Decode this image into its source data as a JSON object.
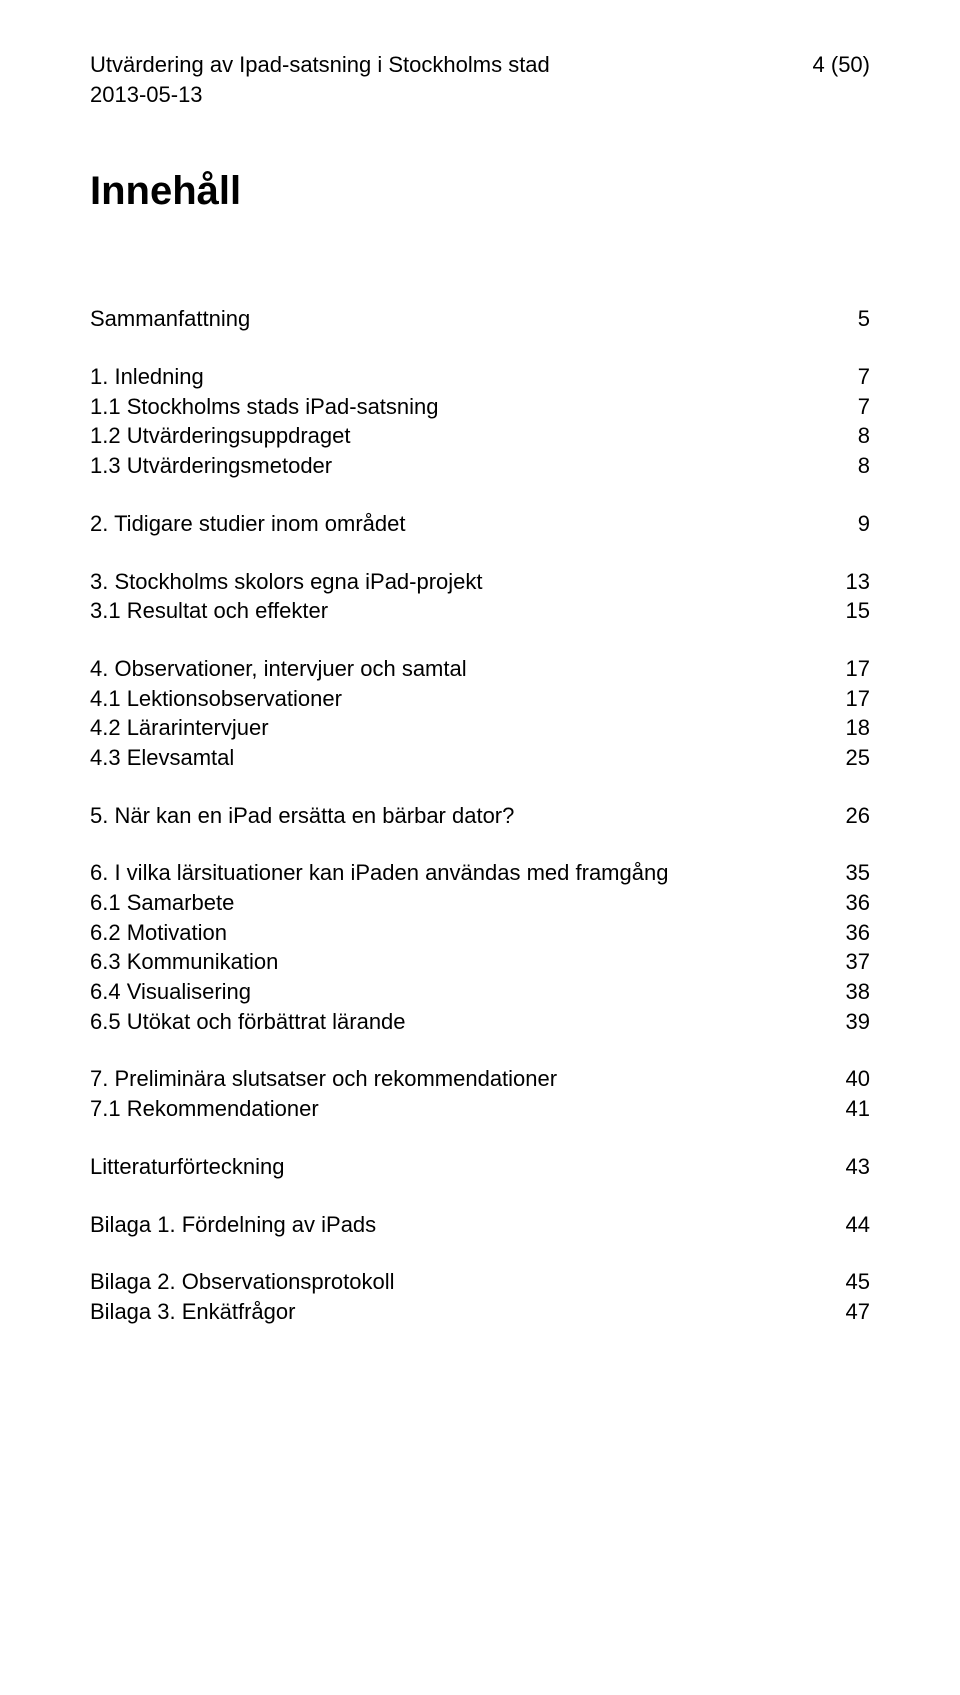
{
  "header": {
    "line1_left": "Utvärdering av Ipad-satsning i Stockholms stad",
    "line1_right": "4 (50)",
    "line2_left": "2013-05-13"
  },
  "title": "Innehåll",
  "toc": {
    "groups": [
      [
        {
          "label": "Sammanfattning",
          "page": "5"
        }
      ],
      [
        {
          "label": "1. Inledning",
          "page": "7"
        },
        {
          "label": "1.1 Stockholms stads iPad-satsning",
          "page": "7"
        },
        {
          "label": "1.2 Utvärderingsuppdraget",
          "page": "8"
        },
        {
          "label": "1.3 Utvärderingsmetoder",
          "page": "8"
        }
      ],
      [
        {
          "label": "2. Tidigare studier inom området",
          "page": "9"
        }
      ],
      [
        {
          "label": "3. Stockholms skolors egna iPad-projekt",
          "page": "13"
        },
        {
          "label": "3.1 Resultat och effekter",
          "page": "15"
        }
      ],
      [
        {
          "label": "4. Observationer, intervjuer och samtal",
          "page": "17"
        },
        {
          "label": "4.1 Lektionsobservationer",
          "page": "17"
        },
        {
          "label": "4.2 Lärarintervjuer",
          "page": "18"
        },
        {
          "label": "4.3 Elevsamtal",
          "page": "25"
        }
      ],
      [
        {
          "label": "5. När kan en iPad ersätta en bärbar dator?",
          "page": "26"
        }
      ],
      [
        {
          "label": "6. I vilka lärsituationer kan iPaden användas med framgång",
          "page": "35"
        },
        {
          "label": "6.1 Samarbete",
          "page": "36"
        },
        {
          "label": "6.2 Motivation",
          "page": "36"
        },
        {
          "label": "6.3 Kommunikation",
          "page": "37"
        },
        {
          "label": "6.4 Visualisering",
          "page": "38"
        },
        {
          "label": "6.5 Utökat och förbättrat lärande",
          "page": "39"
        }
      ],
      [
        {
          "label": "7. Preliminära slutsatser och rekommendationer",
          "page": "40"
        },
        {
          "label": "7.1 Rekommendationer",
          "page": "41"
        }
      ],
      [
        {
          "label": "Litteraturförteckning",
          "page": "43"
        }
      ],
      [
        {
          "label": "Bilaga 1. Fördelning av iPads",
          "page": "44"
        }
      ],
      [
        {
          "label": "Bilaga 2. Observationsprotokoll",
          "page": "45"
        },
        {
          "label": "Bilaga 3. Enkätfrågor",
          "page": "47"
        }
      ]
    ]
  }
}
